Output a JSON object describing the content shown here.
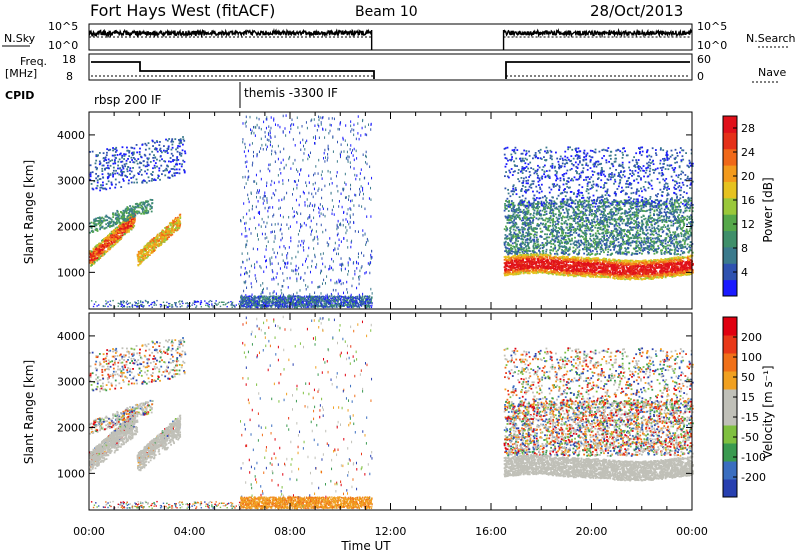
{
  "header": {
    "title": "Fort Hays West (fitACF)",
    "beam": "Beam 10",
    "date": "28/Oct/2013"
  },
  "top_panels": {
    "nsky_label": "N.Sky",
    "nsky_left_ticks": [
      "10^5",
      "10^0"
    ],
    "nsky_right_ticks": [
      "10^5",
      "10^0"
    ],
    "nsearch_label": "N.Search",
    "freq_label": "Freq.",
    "freq_unit": "[MHz]",
    "freq_ticks": [
      "18",
      "8"
    ],
    "nave_label": "Nave",
    "nave_ticks": [
      "60",
      "0"
    ],
    "cpid_label": "CPID",
    "cpid_segments": [
      "rbsp 200 IF",
      "themis -3300 IF"
    ]
  },
  "chart_data": [
    {
      "type": "heatmap",
      "title": "",
      "ylabel": "Slant Range [km]",
      "xlabel": "",
      "ylim": [
        200,
        4500
      ],
      "yticks": [
        "1000",
        "2000",
        "3000",
        "4000"
      ],
      "xlim": [
        0,
        24
      ],
      "colorbar": {
        "label": "Power [dB]",
        "ticks": [
          "4",
          "8",
          "12",
          "16",
          "20",
          "24",
          "28"
        ],
        "range": [
          0,
          30
        ],
        "colors": [
          "#1a1aff",
          "#2f52b0",
          "#3b7a8c",
          "#3f8f6a",
          "#55a84a",
          "#9ac83a",
          "#e6c21f",
          "#f39a1c",
          "#f06818",
          "#e53018",
          "#e0101a"
        ]
      },
      "data_gaps_hours": [
        [
          11.25,
          16.5
        ]
      ],
      "dominant_echo": {
        "range_km": 1200,
        "power_db": 28,
        "hours": [
          16.5,
          24
        ]
      }
    },
    {
      "type": "heatmap",
      "title": "",
      "ylabel": "Slant Range [km]",
      "xlabel": "Time UT",
      "ylim": [
        200,
        4500
      ],
      "yticks": [
        "1000",
        "2000",
        "3000",
        "4000"
      ],
      "xlim": [
        0,
        24
      ],
      "xticks": [
        "00:00",
        "04:00",
        "08:00",
        "12:00",
        "16:00",
        "20:00",
        "00:00"
      ],
      "colorbar": {
        "label": "Velocity [m s⁻¹]",
        "ticks": [
          "200",
          "100",
          "50",
          "15",
          "-15",
          "-50",
          "-100",
          "-200"
        ],
        "colors": [
          "#2840b0",
          "#3a6ec0",
          "#3a9a50",
          "#7fc040",
          "#c0c0b8",
          "#c0c0b8",
          "#f0a020",
          "#f07018",
          "#e83818",
          "#e00010"
        ]
      },
      "ground_scatter_color": "#c0c0b8"
    }
  ]
}
